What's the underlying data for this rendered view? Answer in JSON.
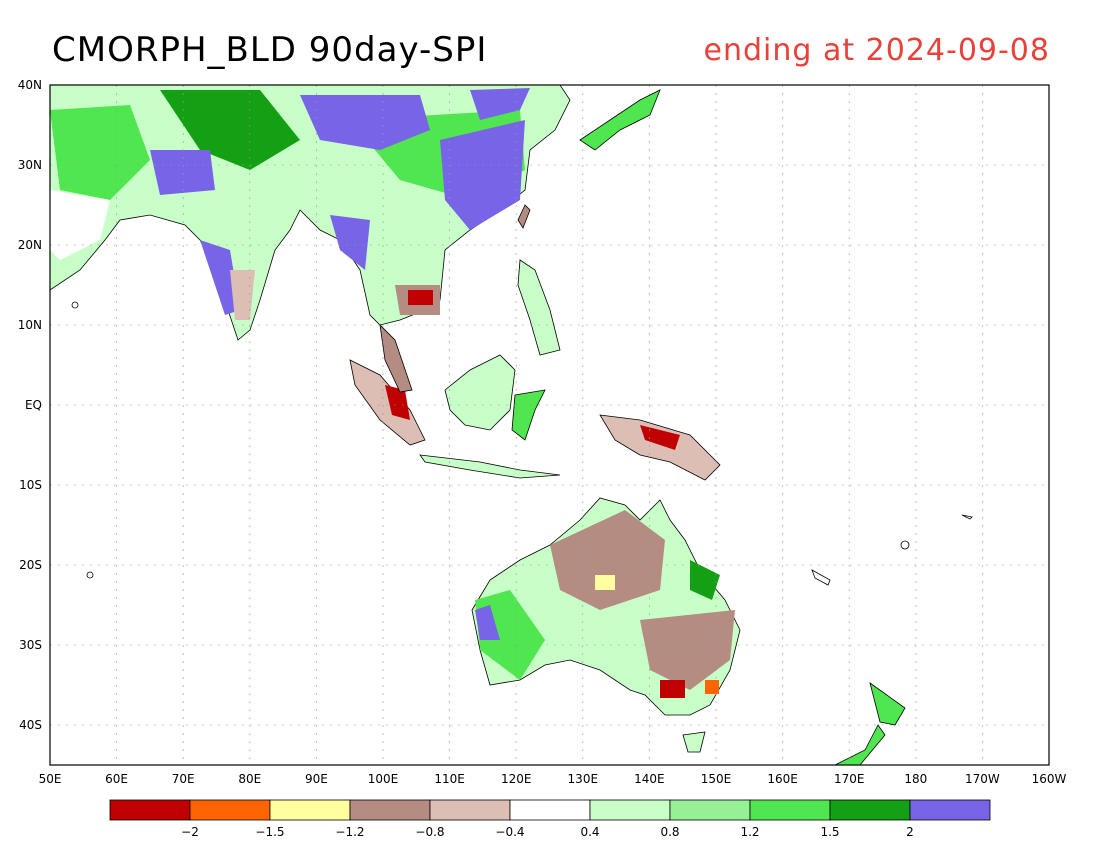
{
  "header": {
    "title": "CMORPH_BLD 90day-SPI",
    "subtitle": "ending at 2024-09-08"
  },
  "map": {
    "lat_labels": [
      "40N",
      "30N",
      "20N",
      "10N",
      "EQ",
      "10S",
      "20S",
      "30S",
      "40S"
    ],
    "lon_labels": [
      "50E",
      "60E",
      "70E",
      "80E",
      "90E",
      "100E",
      "110E",
      "120E",
      "130E",
      "140E",
      "150E",
      "160E",
      "170E",
      "180",
      "170W",
      "160W"
    ]
  },
  "colorbar": {
    "colors": [
      "#c00000",
      "#ff6400",
      "#ffffa0",
      "#b48c82",
      "#dcbeb4",
      "#ffffff",
      "#c8ffc8",
      "#96f096",
      "#50e650",
      "#14a014",
      "#7864e6"
    ],
    "ticks": [
      "−2",
      "−1.5",
      "−1.2",
      "−0.8",
      "−0.4",
      "0.4",
      "0.8",
      "1.2",
      "1.5",
      "2"
    ]
  }
}
